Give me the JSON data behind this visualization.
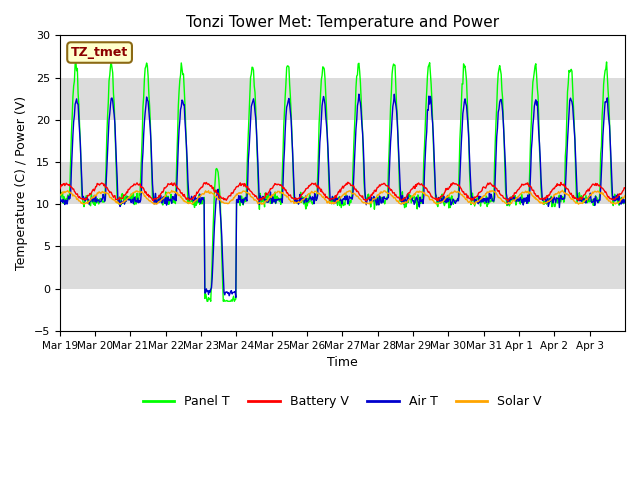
{
  "title": "Tonzi Tower Met: Temperature and Power",
  "xlabel": "Time",
  "ylabel": "Temperature (C) / Power (V)",
  "ylim": [
    -5,
    30
  ],
  "yticks": [
    -5,
    0,
    5,
    10,
    15,
    20,
    25,
    30
  ],
  "x_labels": [
    "Mar 19",
    "Mar 20",
    "Mar 21",
    "Mar 22",
    "Mar 23",
    "Mar 24",
    "Mar 25",
    "Mar 26",
    "Mar 27",
    "Mar 28",
    "Mar 29",
    "Mar 30",
    "Mar 31",
    "Apr 1",
    "Apr 2",
    "Apr 3"
  ],
  "annotation_text": "TZ_tmet",
  "annotation_color": "#8B0000",
  "annotation_bg": "#FFFFCC",
  "annotation_edge": "#8B6914",
  "bg_gray_color": "#DCDCDC",
  "panel_t_color": "#00FF00",
  "battery_v_color": "#FF0000",
  "air_t_color": "#0000CD",
  "solar_v_color": "#FFA500",
  "legend_labels": [
    "Panel T",
    "Battery V",
    "Air T",
    "Solar V"
  ],
  "num_days": 16,
  "points_per_day": 48
}
